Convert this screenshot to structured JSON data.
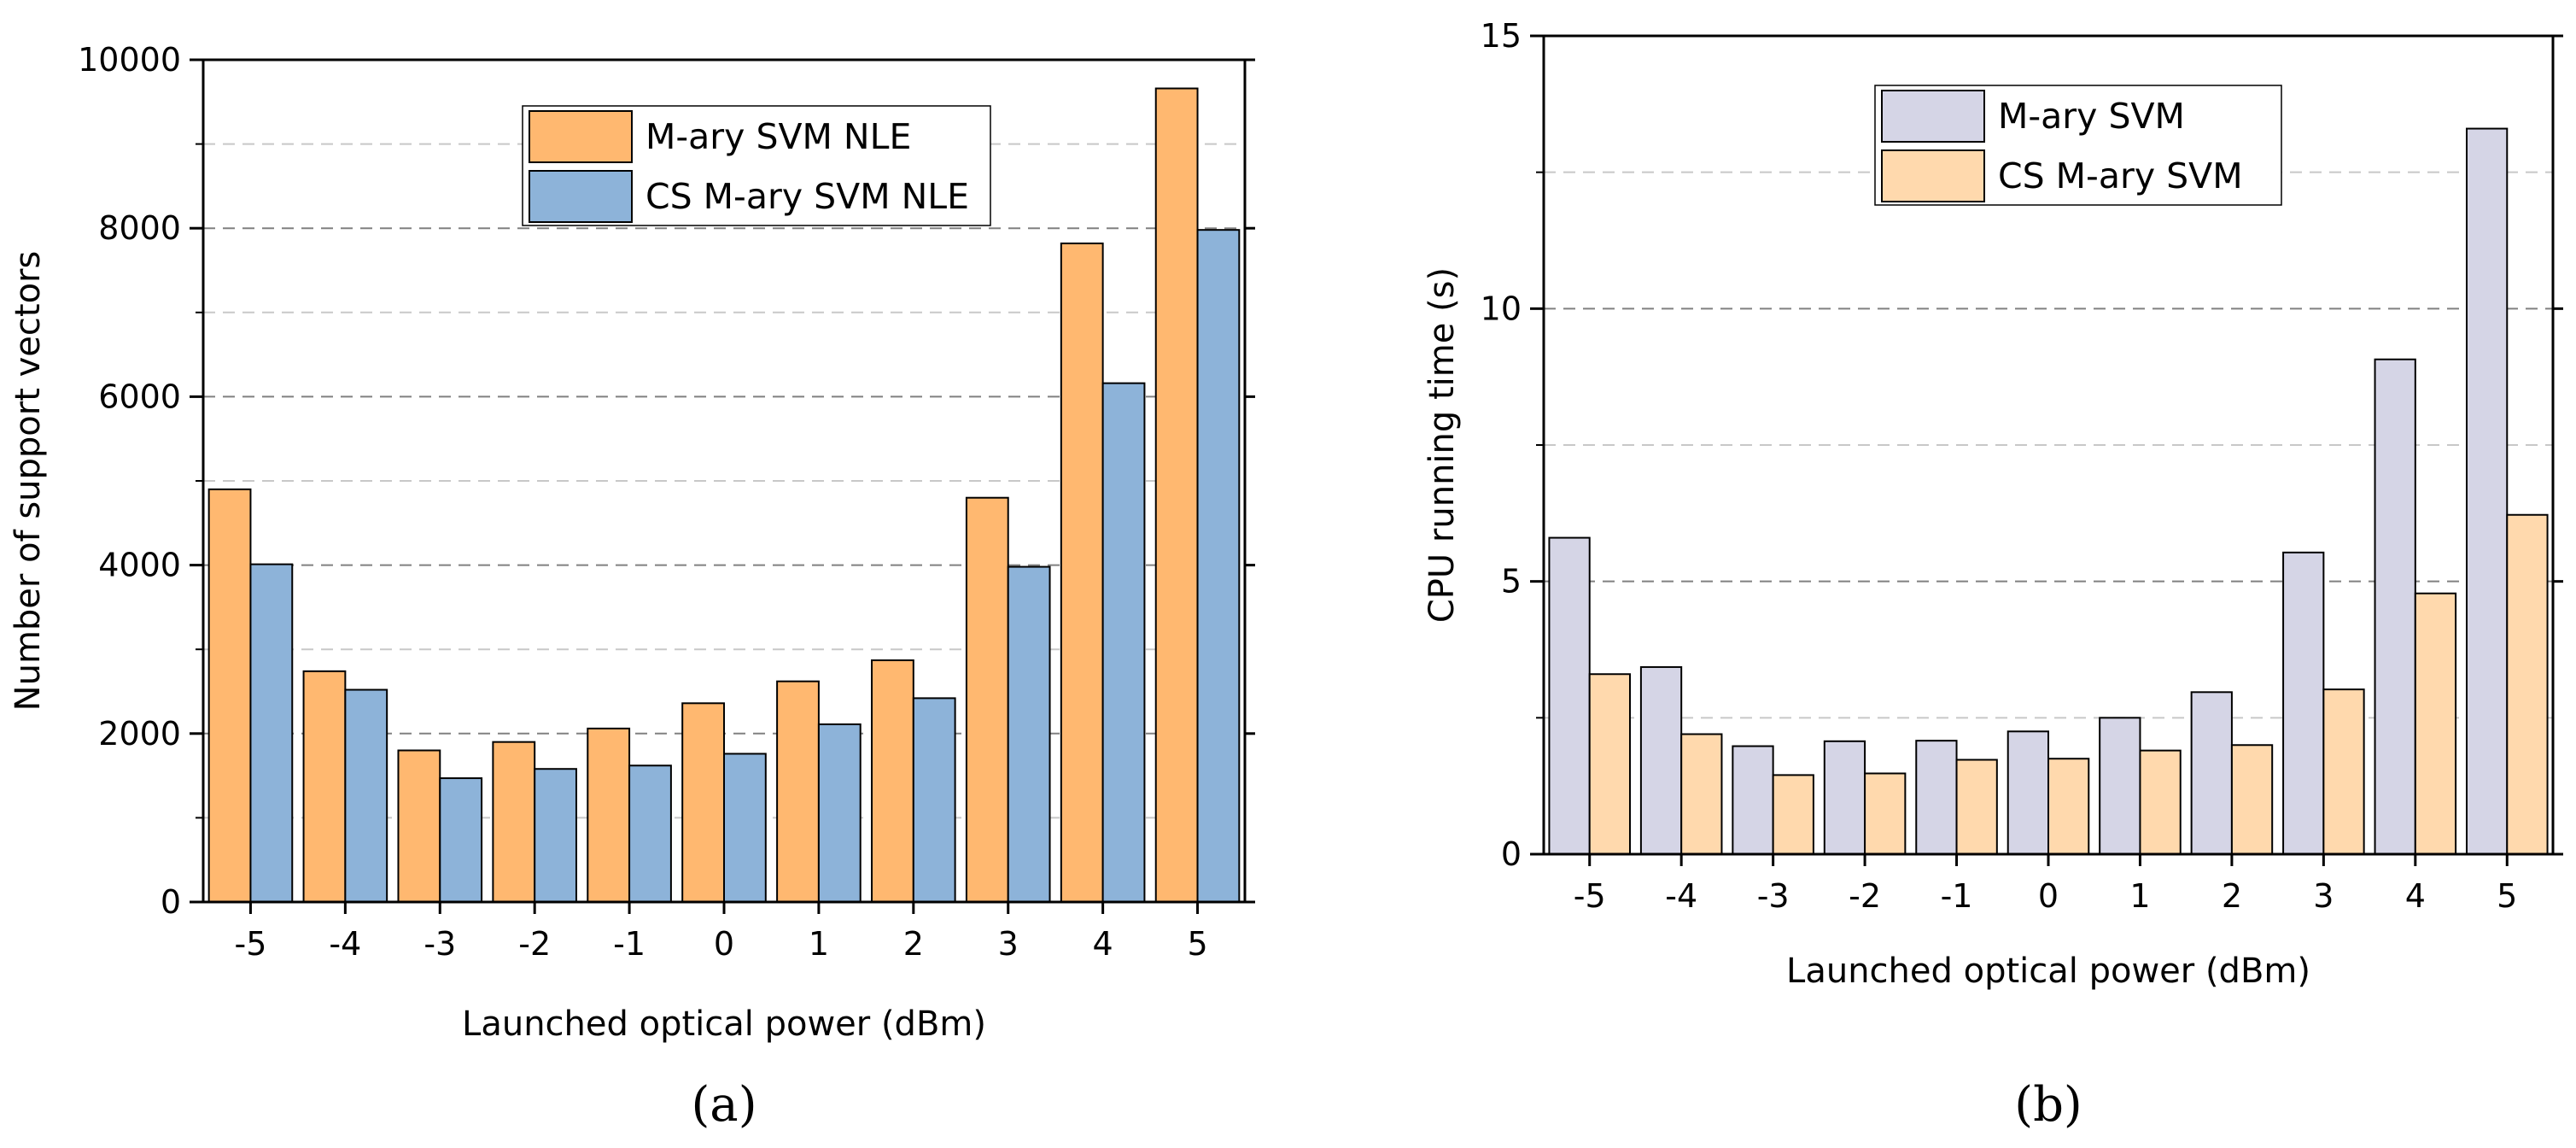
{
  "chart_data": [
    {
      "type": "bar",
      "caption": "(a)",
      "xlabel": "Launched optical power (dBm)",
      "ylabel": "Number of support vectors",
      "categories": [
        "-5",
        "-4",
        "-3",
        "-2",
        "-1",
        "0",
        "1",
        "2",
        "3",
        "4",
        "5"
      ],
      "ylim": [
        0,
        10000
      ],
      "yticks": [
        0,
        2000,
        4000,
        6000,
        8000,
        10000
      ],
      "ytick_labels": [
        "0",
        "2000",
        "4000",
        "6000",
        "8000",
        "10000"
      ],
      "grid_major": [
        2000,
        4000,
        6000,
        8000
      ],
      "grid_minor": [
        1000,
        3000,
        5000,
        7000,
        9000
      ],
      "legend_position": "top-right",
      "series": [
        {
          "name": "M-ary SVM NLE",
          "color": "#FFB870",
          "values": [
            4900,
            2740,
            1800,
            1900,
            2060,
            2360,
            2620,
            2870,
            4800,
            7820,
            9660
          ]
        },
        {
          "name": "CS M-ary SVM NLE",
          "color": "#8DB3D9",
          "values": [
            4010,
            2520,
            1470,
            1580,
            1620,
            1760,
            2110,
            2420,
            3980,
            6160,
            7980
          ]
        }
      ]
    },
    {
      "type": "bar",
      "caption": "(b)",
      "xlabel": "Launched optical power (dBm)",
      "ylabel": "CPU running time (s)",
      "categories": [
        "-5",
        "-4",
        "-3",
        "-2",
        "-1",
        "0",
        "1",
        "2",
        "3",
        "4",
        "5"
      ],
      "ylim": [
        0,
        15
      ],
      "yticks": [
        0,
        5,
        10,
        15
      ],
      "ytick_labels": [
        "0",
        "5",
        "10",
        "15"
      ],
      "grid_major": [
        5,
        10
      ],
      "grid_minor": [
        2.5,
        7.5,
        12.5
      ],
      "legend_position": "top-right",
      "series": [
        {
          "name": "M-ary SVM",
          "color": "#D5D5E6",
          "values": [
            5.8,
            3.43,
            1.98,
            2.07,
            2.08,
            2.25,
            2.5,
            2.97,
            5.53,
            9.07,
            13.3
          ]
        },
        {
          "name": "CS M-ary SVM",
          "color": "#FFD9AD",
          "values": [
            3.3,
            2.2,
            1.45,
            1.48,
            1.73,
            1.75,
            1.9,
            2.0,
            3.02,
            4.78,
            6.22
          ]
        }
      ]
    }
  ]
}
